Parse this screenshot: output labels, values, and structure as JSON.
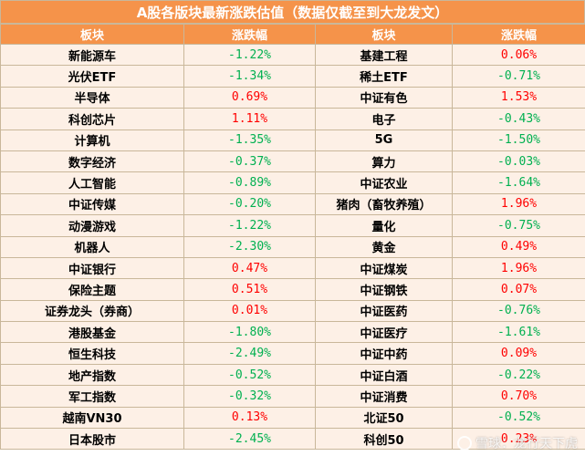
{
  "title": "A股各版块最新涨跌估值（数据仅截至到大龙发文）",
  "headers": [
    "板块",
    "涨跌幅",
    "板块",
    "涨跌幅"
  ],
  "colors": {
    "header_bg": "#f5934a",
    "row_bg": "#fdf0e6",
    "up": "#ff0000",
    "down": "#00b050",
    "border": "#c9b79a"
  },
  "rows": [
    {
      "left_name": "新能源车",
      "left_change": "-1.22%",
      "right_name": "基建工程",
      "right_change": "0.06%"
    },
    {
      "left_name": "光伏ETF",
      "left_change": "-1.34%",
      "right_name": "稀土ETF",
      "right_change": "-0.71%"
    },
    {
      "left_name": "半导体",
      "left_change": "0.69%",
      "right_name": "中证有色",
      "right_change": "1.53%"
    },
    {
      "left_name": "科创芯片",
      "left_change": "1.11%",
      "right_name": "电子",
      "right_change": "-0.43%"
    },
    {
      "left_name": "计算机",
      "left_change": "-1.35%",
      "right_name": "5G",
      "right_change": "-1.50%"
    },
    {
      "left_name": "数字经济",
      "left_change": "-0.37%",
      "right_name": "算力",
      "right_change": "-0.03%"
    },
    {
      "left_name": "人工智能",
      "left_change": "-0.89%",
      "right_name": "中证农业",
      "right_change": "-1.64%"
    },
    {
      "left_name": "中证传媒",
      "left_change": "-0.20%",
      "right_name": "猪肉（畜牧养殖）",
      "right_change": "1.96%"
    },
    {
      "left_name": "动漫游戏",
      "left_change": "-1.22%",
      "right_name": "量化",
      "right_change": "-0.75%"
    },
    {
      "left_name": "机器人",
      "left_change": "-2.30%",
      "right_name": "黄金",
      "right_change": "0.49%"
    },
    {
      "left_name": "中证银行",
      "left_change": "0.47%",
      "right_name": "中证煤炭",
      "right_change": "1.96%"
    },
    {
      "left_name": "保险主题",
      "left_change": "0.51%",
      "right_name": "中证钢铁",
      "right_change": "0.07%"
    },
    {
      "left_name": "证券龙头（券商）",
      "left_change": "0.01%",
      "right_name": "中证医药",
      "right_change": "-0.76%"
    },
    {
      "left_name": "港股基金",
      "left_change": "-1.80%",
      "right_name": "中证医疗",
      "right_change": "-1.61%"
    },
    {
      "left_name": "恒生科技",
      "left_change": "-2.49%",
      "right_name": "中证中药",
      "right_change": "0.09%"
    },
    {
      "left_name": "地产指数",
      "left_change": "-0.52%",
      "right_name": "中证白酒",
      "right_change": "-0.22%"
    },
    {
      "left_name": "军工指数",
      "left_change": "-0.32%",
      "right_name": "中证消费",
      "right_change": "0.70%"
    },
    {
      "left_name": "越南VN30",
      "left_change": "0.13%",
      "right_name": "北证50",
      "right_change": "-0.52%"
    },
    {
      "left_name": "日本股市",
      "left_change": "-2.45%",
      "right_name": "科创50",
      "right_change": "0.23%"
    }
  ],
  "watermark": "雪球：龙行天下虎"
}
